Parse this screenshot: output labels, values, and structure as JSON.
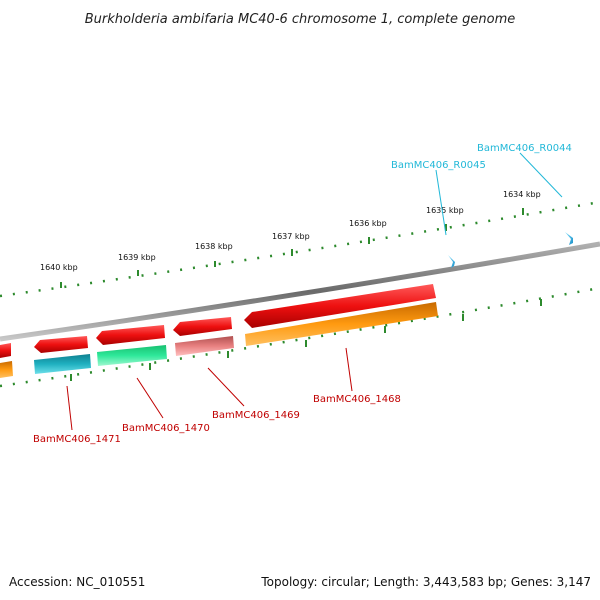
{
  "title": "Burkholderia ambifaria MC40-6 chromosome 1, complete genome",
  "footer": {
    "accession": "Accession: NC_010551",
    "summary": "Topology: circular; Length: 3,443,583 bp; Genes: 3,147"
  },
  "scale": {
    "unit": "kbp",
    "ticks": [
      "1640 kbp",
      "1639 kbp",
      "1638 kbp",
      "1637 kbp",
      "1636 kbp",
      "1635 kbp",
      "1634 kbp"
    ]
  },
  "genes": [
    {
      "id": "BamMC406_1471",
      "color": "#e31b1b"
    },
    {
      "id": "BamMC406_1470",
      "color": "#e31b1b"
    },
    {
      "id": "BamMC406_1469",
      "color": "#e31b1b"
    },
    {
      "id": "BamMC406_1468",
      "color": "#e31b1b"
    }
  ],
  "cog_colors": {
    "cyan": "#1fb0c0",
    "green": "#2ee89a",
    "pink": "#e88080",
    "orange": "#ff9a10"
  },
  "rnas": [
    {
      "id": "BamMC406_R0045",
      "color": "#22b8d8"
    },
    {
      "id": "BamMC406_R0044",
      "color": "#22b8d8"
    }
  ]
}
